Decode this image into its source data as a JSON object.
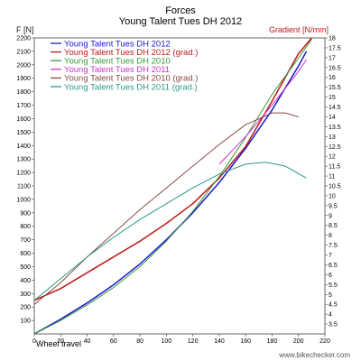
{
  "chart_data": {
    "type": "line",
    "title": "Forces",
    "subtitle": "Young Talent Tues DH 2012",
    "xlabel": "Wheel travel",
    "ylabel_left": "F [N]",
    "ylabel_right": "Gradient [N/mm]",
    "watermark": "www.bikechecker.com",
    "xlim": [
      0,
      220
    ],
    "ylim_left": [
      0,
      2200
    ],
    "ylim_right": [
      3.0,
      18.0
    ],
    "x_ticks": [
      0,
      20,
      40,
      60,
      80,
      100,
      120,
      140,
      160,
      180,
      200,
      220
    ],
    "y_ticks_left": [
      100,
      200,
      300,
      400,
      500,
      600,
      700,
      800,
      900,
      1000,
      1100,
      1200,
      1300,
      1400,
      1500,
      1600,
      1700,
      1800,
      1900,
      2000,
      2100,
      2200
    ],
    "y_ticks_right": [
      "3.5",
      "4",
      "4.5",
      "5",
      "5.5",
      "6",
      "6.5",
      "7",
      "7.5",
      "8",
      "8.5",
      "9",
      "9.5",
      "10",
      "10.5",
      "11",
      "11.5",
      "12",
      "12.5",
      "13",
      "13.5",
      "14",
      "14.5",
      "15",
      "15.5",
      "16",
      "16.5",
      "17",
      "17.5",
      "18"
    ],
    "legend_position": "top-left",
    "series": [
      {
        "name": "Young Talent Tues DH 2012",
        "axis": "left",
        "color": "#1a1acc",
        "x": [
          0,
          20,
          40,
          60,
          80,
          100,
          120,
          140,
          160,
          180,
          200,
          206
        ],
        "y": [
          0,
          110,
          230,
          365,
          520,
          700,
          900,
          1125,
          1380,
          1665,
          1990,
          2100
        ]
      },
      {
        "name": "Young Talent Tues DH 2012 (grad.)",
        "axis": "right",
        "color": "#c01818",
        "x": [
          0,
          20,
          40,
          60,
          80,
          100,
          120,
          140,
          160,
          180,
          200,
          210
        ],
        "y": [
          4.7,
          5.3,
          6.1,
          6.9,
          7.7,
          8.6,
          9.6,
          10.9,
          12.5,
          14.8,
          17.2,
          18.0
        ]
      },
      {
        "name": "Young Talent Tues DH 2010",
        "axis": "left",
        "color": "#3a9a3a",
        "x": [
          0,
          20,
          40,
          60,
          80,
          100,
          120,
          140,
          160,
          180,
          200,
          210
        ],
        "y": [
          0,
          100,
          215,
          345,
          500,
          690,
          910,
          1170,
          1460,
          1780,
          2050,
          2190
        ]
      },
      {
        "name": "Young Talent Tues DH 2011",
        "axis": "right",
        "color": "#cc33cc",
        "x": [
          140,
          160,
          180,
          200,
          206
        ],
        "y": [
          11.6,
          13.0,
          14.6,
          16.3,
          16.9
        ]
      },
      {
        "name": "Young Talent Tues DH 2010 (grad.)",
        "axis": "right",
        "color": "#8b4a42",
        "x": [
          0,
          20,
          40,
          60,
          80,
          100,
          120,
          140,
          160,
          180,
          190,
          200
        ],
        "y": [
          4.5,
          5.6,
          6.9,
          8.1,
          9.3,
          10.4,
          11.5,
          12.6,
          13.6,
          14.2,
          14.2,
          14.0
        ]
      },
      {
        "name": "Young Talent Tues DH 2011 (grad.)",
        "axis": "right",
        "color": "#2a9a8a",
        "x": [
          0,
          20,
          40,
          60,
          80,
          100,
          120,
          140,
          160,
          175,
          190,
          206
        ],
        "y": [
          4.7,
          5.8,
          6.9,
          7.9,
          8.8,
          9.6,
          10.4,
          11.1,
          11.6,
          11.7,
          11.5,
          10.9
        ]
      }
    ]
  }
}
